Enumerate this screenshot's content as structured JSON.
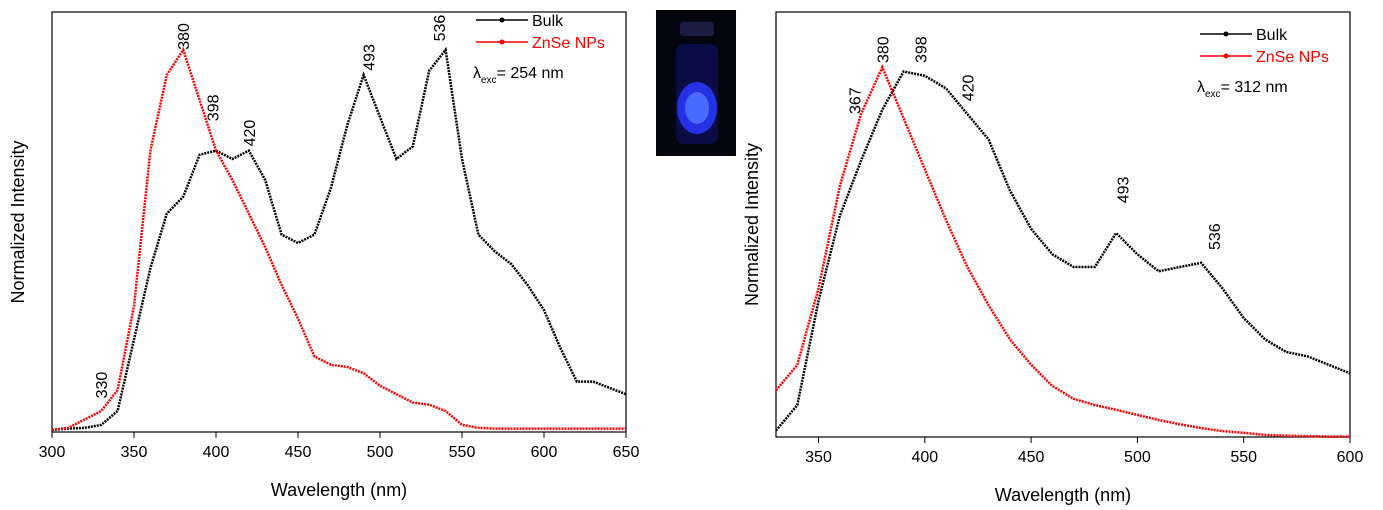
{
  "chart_data": [
    {
      "type": "line",
      "xlabel": "Wavelength (nm)",
      "ylabel": "Normalized Intensity",
      "xlim": [
        300,
        650
      ],
      "xticks": [
        300,
        350,
        400,
        450,
        500,
        550,
        600,
        650
      ],
      "ylim": [
        0,
        1
      ],
      "legend": "upper right",
      "x": [
        300,
        310,
        320,
        330,
        340,
        350,
        360,
        370,
        380,
        390,
        400,
        410,
        420,
        430,
        440,
        450,
        460,
        470,
        480,
        490,
        500,
        510,
        520,
        530,
        540,
        550,
        560,
        570,
        580,
        590,
        600,
        610,
        620,
        630,
        640,
        650
      ],
      "series": [
        {
          "name": "Bulk",
          "color": "#000000",
          "values": [
            0.005,
            0.008,
            0.01,
            0.017,
            0.05,
            0.22,
            0.39,
            0.52,
            0.56,
            0.66,
            0.67,
            0.65,
            0.67,
            0.6,
            0.47,
            0.45,
            0.47,
            0.58,
            0.73,
            0.85,
            0.75,
            0.65,
            0.68,
            0.86,
            0.91,
            0.65,
            0.47,
            0.43,
            0.4,
            0.35,
            0.29,
            0.2,
            0.12,
            0.12,
            0.105,
            0.09
          ]
        },
        {
          "name": "ZnSe NPs",
          "color": "#ff0000",
          "values": [
            0.005,
            0.01,
            0.03,
            0.05,
            0.1,
            0.3,
            0.67,
            0.85,
            0.91,
            0.79,
            0.67,
            0.6,
            0.52,
            0.44,
            0.35,
            0.27,
            0.18,
            0.16,
            0.155,
            0.14,
            0.11,
            0.09,
            0.07,
            0.065,
            0.05,
            0.017,
            0.01,
            0.008,
            0.008,
            0.008,
            0.008,
            0.008,
            0.008,
            0.008,
            0.008,
            0.008
          ]
        }
      ],
      "annotations": [
        {
          "x": 330,
          "y": 0.08
        },
        {
          "x": 380,
          "y": 0.91
        },
        {
          "x": 398,
          "y": 0.74
        },
        {
          "x": 420,
          "y": 0.68
        },
        {
          "x": 493,
          "y": 0.86
        },
        {
          "x": 536,
          "y": 0.93
        }
      ],
      "excitation": {
        "symbol": "λ",
        "subscript": "exc",
        "text": "= 254 nm"
      }
    },
    {
      "type": "line",
      "xlabel": "Wavelength (nm)",
      "ylabel": "Normalized Intensity",
      "xlim": [
        330,
        600
      ],
      "xticks": [
        350,
        400,
        450,
        500,
        550,
        600
      ],
      "ylim": [
        0,
        1
      ],
      "legend": "upper right",
      "x": [
        330,
        340,
        350,
        360,
        370,
        380,
        390,
        400,
        410,
        420,
        430,
        440,
        450,
        460,
        470,
        480,
        490,
        500,
        510,
        520,
        530,
        540,
        550,
        560,
        570,
        580,
        590,
        600
      ],
      "series": [
        {
          "name": "Bulk",
          "color": "#000000",
          "values": [
            0.015,
            0.075,
            0.32,
            0.52,
            0.65,
            0.77,
            0.86,
            0.85,
            0.82,
            0.76,
            0.7,
            0.58,
            0.49,
            0.43,
            0.4,
            0.4,
            0.48,
            0.43,
            0.39,
            0.4,
            0.41,
            0.35,
            0.28,
            0.23,
            0.2,
            0.19,
            0.17,
            0.15
          ]
        },
        {
          "name": "ZnSe NPs",
          "color": "#ff0000",
          "values": [
            0.11,
            0.17,
            0.35,
            0.59,
            0.76,
            0.87,
            0.75,
            0.63,
            0.51,
            0.4,
            0.31,
            0.23,
            0.17,
            0.12,
            0.09,
            0.075,
            0.064,
            0.052,
            0.04,
            0.03,
            0.021,
            0.014,
            0.01,
            0.005,
            0.003,
            0.002,
            0.001,
            0.001
          ]
        }
      ],
      "annotations": [
        {
          "x": 367,
          "y": 0.76
        },
        {
          "x": 380,
          "y": 0.88
        },
        {
          "x": 398,
          "y": 0.88
        },
        {
          "x": 420,
          "y": 0.79
        },
        {
          "x": 493,
          "y": 0.55
        },
        {
          "x": 536,
          "y": 0.44
        }
      ],
      "excitation": {
        "symbol": "λ",
        "subscript": "exc",
        "text": "= 312 nm"
      }
    }
  ]
}
